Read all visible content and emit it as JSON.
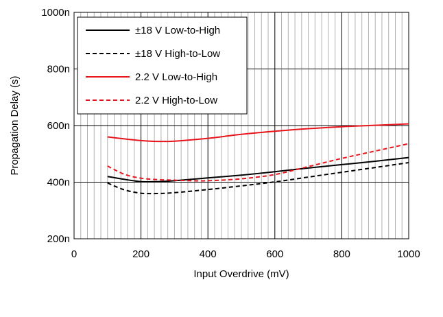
{
  "chart_data": {
    "type": "line",
    "title": "",
    "xlabel": "Input Overdrive (mV)",
    "ylabel": "Propagation Delay (s)",
    "xlim": [
      0,
      1000
    ],
    "ylim": [
      200,
      1000
    ],
    "x_ticks": [
      0,
      200,
      400,
      600,
      800,
      1000
    ],
    "x_tick_labels": [
      "0",
      "200",
      "400",
      "600",
      "800",
      "1000"
    ],
    "y_ticks": [
      200,
      400,
      600,
      800,
      1000
    ],
    "y_tick_labels": [
      "200n",
      "400n",
      "600n",
      "800n",
      "1000n"
    ],
    "x_minor_step": 20,
    "grid": true,
    "legend_position": "top-left",
    "series": [
      {
        "name": "±18 V Low-to-High",
        "color": "#000000",
        "dash": "solid",
        "x": [
          100,
          150,
          200,
          250,
          300,
          400,
          500,
          600,
          700,
          800,
          900,
          1000
        ],
        "y": [
          420,
          410,
          402,
          402,
          405,
          415,
          425,
          437,
          450,
          462,
          474,
          487
        ]
      },
      {
        "name": "±18 V High-to-Low",
        "color": "#000000",
        "dash": "dashed",
        "x": [
          100,
          150,
          200,
          250,
          300,
          400,
          500,
          600,
          700,
          800,
          900,
          1000
        ],
        "y": [
          397,
          373,
          361,
          360,
          363,
          374,
          387,
          401,
          418,
          435,
          452,
          469
        ]
      },
      {
        "name": "2.2 V Low-to-High",
        "color": "#e8141c",
        "dash": "solid",
        "x": [
          100,
          150,
          200,
          250,
          300,
          400,
          500,
          600,
          700,
          800,
          900,
          1000
        ],
        "y": [
          560,
          553,
          547,
          544,
          545,
          555,
          569,
          580,
          589,
          596,
          601,
          606
        ]
      },
      {
        "name": "2.2 V High-to-Low",
        "color": "#e8141c",
        "dash": "dashed",
        "x": [
          100,
          150,
          200,
          250,
          300,
          350,
          400,
          500,
          600,
          700,
          800,
          900,
          1000
        ],
        "y": [
          457,
          428,
          414,
          409,
          407,
          405,
          405,
          412,
          427,
          455,
          484,
          510,
          536
        ]
      }
    ]
  }
}
